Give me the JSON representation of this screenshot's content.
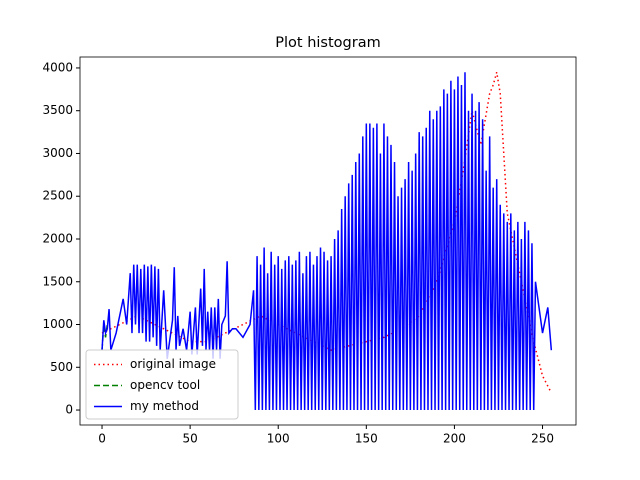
{
  "chart_data": {
    "type": "line",
    "title": "Plot histogram",
    "xlim": [
      -12.5,
      269
    ],
    "ylim": [
      -175,
      4128
    ],
    "xticks": [
      0,
      50,
      100,
      150,
      200,
      250
    ],
    "yticks": [
      0,
      500,
      1000,
      1500,
      2000,
      2500,
      3000,
      3500,
      4000
    ],
    "legend": "lower left",
    "series": [
      {
        "name": "original image",
        "color": "#ff0000",
        "style": "dotted",
        "x": [
          0,
          10,
          20,
          30,
          40,
          50,
          60,
          70,
          80,
          90,
          100,
          110,
          120,
          130,
          140,
          150,
          160,
          170,
          180,
          190,
          200,
          205,
          210,
          215,
          220,
          222,
          224,
          226,
          228,
          230,
          235,
          240,
          245,
          250,
          255
        ],
        "values": [
          900,
          1000,
          1100,
          1000,
          900,
          800,
          800,
          900,
          1000,
          1100,
          1000,
          900,
          800,
          700,
          750,
          800,
          850,
          950,
          1100,
          1500,
          2200,
          2800,
          3500,
          3100,
          3700,
          3800,
          3950,
          3700,
          3000,
          2300,
          1800,
          1300,
          800,
          400,
          200
        ]
      },
      {
        "name": "opencv tool",
        "color": "#008000",
        "style": "dashed",
        "x": [
          0,
          1,
          2,
          3
        ],
        "values": [
          700,
          1000,
          850,
          1000
        ]
      },
      {
        "name": "my method",
        "color": "#0000ff",
        "style": "solid",
        "x": [
          0,
          1,
          2,
          3,
          4,
          5,
          8,
          12,
          14,
          16,
          17,
          18,
          19,
          20,
          21,
          22,
          23,
          24,
          25,
          26,
          27,
          28,
          29,
          30,
          31,
          32,
          33,
          35,
          37,
          40,
          41,
          42,
          43,
          44,
          46,
          48,
          50,
          51,
          53,
          54,
          56,
          57,
          58,
          59,
          60,
          61,
          62,
          63,
          64,
          65,
          66,
          67,
          68,
          70,
          71,
          72,
          74,
          76,
          80,
          84,
          86,
          87,
          88,
          89,
          90,
          91,
          92,
          93,
          94,
          95,
          96,
          97,
          98,
          99,
          100,
          101,
          102,
          103,
          104,
          105,
          106,
          107,
          108,
          109,
          110,
          111,
          112,
          113,
          114,
          115,
          116,
          117,
          118,
          119,
          120,
          121,
          122,
          123,
          124,
          125,
          126,
          127,
          128,
          129,
          130,
          131,
          132,
          133,
          134,
          135,
          136,
          137,
          138,
          139,
          140,
          141,
          142,
          143,
          144,
          145,
          146,
          147,
          148,
          149,
          150,
          151,
          152,
          153,
          154,
          155,
          156,
          157,
          158,
          159,
          160,
          161,
          162,
          163,
          164,
          165,
          166,
          167,
          168,
          169,
          170,
          171,
          172,
          173,
          174,
          175,
          176,
          177,
          178,
          179,
          180,
          181,
          182,
          183,
          184,
          185,
          186,
          187,
          188,
          189,
          190,
          191,
          192,
          193,
          194,
          195,
          196,
          197,
          198,
          199,
          200,
          201,
          202,
          203,
          204,
          205,
          206,
          207,
          208,
          209,
          210,
          211,
          212,
          213,
          214,
          215,
          216,
          217,
          218,
          219,
          220,
          221,
          222,
          223,
          224,
          225,
          226,
          227,
          228,
          229,
          230,
          231,
          232,
          233,
          234,
          235,
          236,
          237,
          238,
          239,
          240,
          241,
          242,
          243,
          244,
          245,
          246,
          248,
          250,
          252,
          253,
          255
        ],
        "values": [
          700,
          1050,
          900,
          950,
          1180,
          700,
          900,
          1300,
          1000,
          1600,
          900,
          1700,
          1000,
          1700,
          900,
          1650,
          900,
          1700,
          800,
          1680,
          800,
          1700,
          850,
          1680,
          750,
          1650,
          700,
          1400,
          600,
          1050,
          1670,
          700,
          1100,
          750,
          950,
          700,
          1150,
          650,
          1200,
          650,
          1420,
          750,
          1650,
          700,
          1150,
          700,
          1200,
          600,
          1200,
          700,
          1300,
          600,
          1000,
          1100,
          1740,
          900,
          950,
          950,
          850,
          1000,
          1400,
          0,
          1800,
          0,
          1700,
          0,
          1900,
          0,
          1600,
          0,
          1850,
          0,
          1700,
          0,
          1800,
          0,
          1650,
          0,
          1750,
          0,
          1800,
          0,
          1700,
          0,
          1750,
          0,
          1850,
          0,
          1600,
          0,
          1800,
          0,
          1850,
          0,
          1700,
          0,
          1800,
          0,
          1900,
          0,
          1850,
          0,
          1750,
          0,
          1800,
          0,
          2000,
          0,
          2100,
          0,
          2350,
          0,
          2500,
          0,
          2650,
          0,
          2750,
          0,
          2900,
          0,
          3000,
          0,
          3200,
          0,
          3350,
          0,
          3350,
          0,
          3300,
          0,
          3350,
          0,
          3000,
          0,
          3350,
          0,
          3200,
          0,
          3100,
          0,
          2900,
          0,
          2500,
          0,
          2600,
          0,
          2700,
          0,
          2900,
          0,
          2800,
          0,
          3000,
          0,
          3250,
          0,
          3200,
          0,
          3300,
          0,
          3500,
          0,
          3400,
          0,
          3500,
          0,
          3550,
          0,
          3750,
          0,
          3700,
          0,
          3850,
          0,
          3750,
          0,
          3900,
          0,
          3800,
          0,
          3950,
          0,
          3500,
          0,
          3700,
          0,
          3500,
          0,
          3600,
          0,
          3400,
          0,
          2800,
          0,
          3200,
          0,
          2600,
          0,
          2700,
          0,
          2400,
          0,
          2300,
          0,
          2200,
          0,
          2300,
          0,
          2100,
          0,
          2200,
          0,
          2000,
          0,
          2200,
          0,
          2100,
          0,
          1950,
          0,
          1500,
          1200,
          900,
          1100,
          1200,
          700
        ]
      }
    ]
  }
}
